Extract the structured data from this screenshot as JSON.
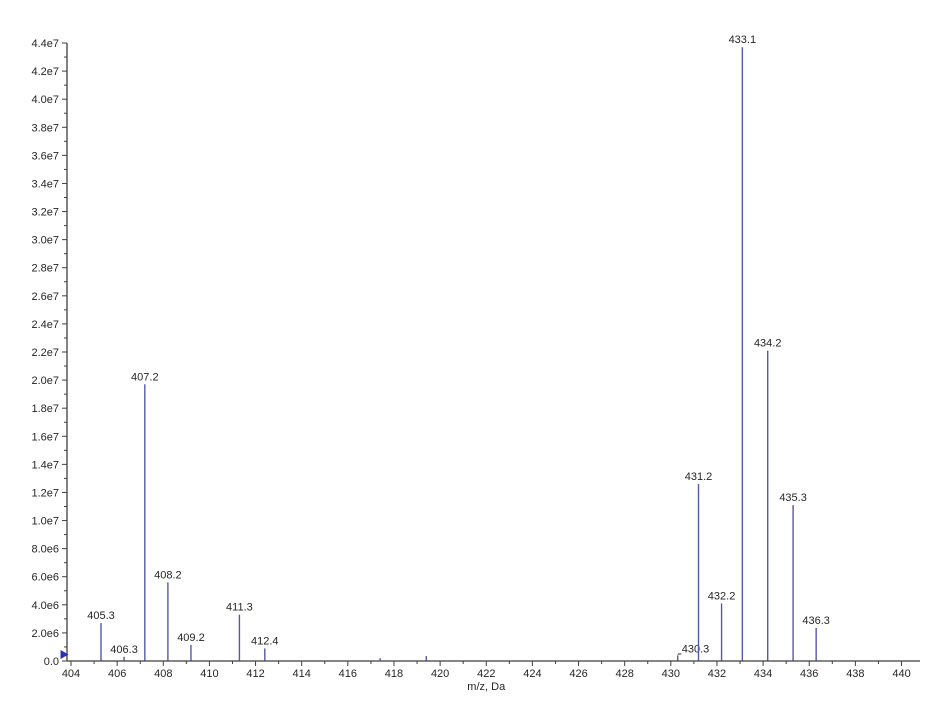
{
  "chart_data": {
    "type": "bar",
    "variant": "mass-spectrum-stick-plot",
    "title": "",
    "xlabel": "m/z, Da",
    "ylabel": "",
    "xlim": [
      403.8,
      441.2
    ],
    "ylim": [
      0,
      44000000
    ],
    "grid": false,
    "legend": false,
    "x_major_ticks": [
      404,
      406,
      408,
      410,
      412,
      414,
      416,
      418,
      420,
      422,
      424,
      426,
      428,
      430,
      432,
      434,
      436,
      438,
      440
    ],
    "x_minor_tick_step": 1,
    "y_major_ticks": [
      {
        "value": 0,
        "label": "0.0"
      },
      {
        "value": 2000000,
        "label": "2.0e6"
      },
      {
        "value": 4000000,
        "label": "4.0e6"
      },
      {
        "value": 6000000,
        "label": "6.0e6"
      },
      {
        "value": 8000000,
        "label": "8.0e6"
      },
      {
        "value": 10000000,
        "label": "1.0e7"
      },
      {
        "value": 12000000,
        "label": "1.2e7"
      },
      {
        "value": 14000000,
        "label": "1.4e7"
      },
      {
        "value": 16000000,
        "label": "1.6e7"
      },
      {
        "value": 18000000,
        "label": "1.8e7"
      },
      {
        "value": 20000000,
        "label": "2.0e7"
      },
      {
        "value": 22000000,
        "label": "2.2e7"
      },
      {
        "value": 24000000,
        "label": "2.4e7"
      },
      {
        "value": 26000000,
        "label": "2.6e7"
      },
      {
        "value": 28000000,
        "label": "2.8e7"
      },
      {
        "value": 30000000,
        "label": "3.0e7"
      },
      {
        "value": 32000000,
        "label": "3.2e7"
      },
      {
        "value": 34000000,
        "label": "3.4e7"
      },
      {
        "value": 36000000,
        "label": "3.6e7"
      },
      {
        "value": 38000000,
        "label": "3.8e7"
      },
      {
        "value": 40000000,
        "label": "4.0e7"
      },
      {
        "value": 42000000,
        "label": "4.2e7"
      },
      {
        "value": 44000000,
        "label": "4.4e7"
      }
    ],
    "y_minor_tick_step": 1000000,
    "peaks": [
      {
        "mz": 405.3,
        "intensity": 2700000,
        "label": "405.3"
      },
      {
        "mz": 406.3,
        "intensity": 300000,
        "label": "406.3"
      },
      {
        "mz": 407.2,
        "intensity": 19700000,
        "label": "407.2"
      },
      {
        "mz": 408.2,
        "intensity": 5600000,
        "label": "408.2"
      },
      {
        "mz": 409.2,
        "intensity": 1150000,
        "label": "409.2"
      },
      {
        "mz": 411.3,
        "intensity": 3300000,
        "label": "411.3"
      },
      {
        "mz": 412.4,
        "intensity": 900000,
        "label": "412.4"
      },
      {
        "mz": 417.4,
        "intensity": 200000,
        "label": null
      },
      {
        "mz": 419.4,
        "intensity": 350000,
        "label": null
      },
      {
        "mz": 430.3,
        "intensity": 400000,
        "label": "430.3",
        "label_anchor": "start",
        "label_dx": 4,
        "label_dy": -3,
        "leader": true
      },
      {
        "mz": 431.2,
        "intensity": 12600000,
        "label": "431.2"
      },
      {
        "mz": 432.2,
        "intensity": 4100000,
        "label": "432.2"
      },
      {
        "mz": 433.1,
        "intensity": 43700000,
        "label": "433.1"
      },
      {
        "mz": 434.2,
        "intensity": 22100000,
        "label": "434.2"
      },
      {
        "mz": 435.3,
        "intensity": 11100000,
        "label": "435.3"
      },
      {
        "mz": 436.3,
        "intensity": 2350000,
        "label": "436.3"
      }
    ],
    "origin_marker": {
      "icon": "right-triangle",
      "mz": 403.85,
      "intensity": 0
    }
  },
  "colors": {
    "background": "#ffffff",
    "stick": "#5459a8",
    "axis": "#3f3f3f",
    "text": "#262626",
    "origin_marker": "#2c2cc0"
  }
}
